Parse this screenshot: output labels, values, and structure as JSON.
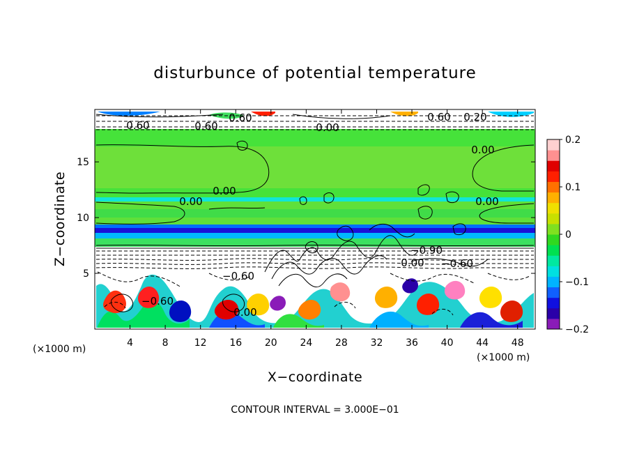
{
  "chart_data": {
    "type": "heatmap",
    "title": "disturbunce of potential temperature",
    "xlabel": "X−coordinate",
    "ylabel": "Z−coordinate",
    "x_unit": "(×1000 m)",
    "x_ticks": [
      4,
      8,
      12,
      16,
      20,
      24,
      28,
      32,
      36,
      40,
      44,
      48
    ],
    "y_ticks": [
      5,
      10,
      15
    ],
    "xlim": [
      0,
      50
    ],
    "ylim": [
      0,
      19.7
    ],
    "colorbar": {
      "ticks": [
        "0.2",
        "0.1",
        "0",
        "−0.1",
        "−0.2"
      ],
      "values": [
        0.2,
        0.1,
        0,
        -0.1,
        -0.2
      ],
      "range": [
        -0.2,
        0.2
      ],
      "colors": [
        "#8a1cb8",
        "#2a00a8",
        "#1010e0",
        "#1060ff",
        "#00b4ff",
        "#00e0e0",
        "#00e8a0",
        "#00e050",
        "#30d820",
        "#80e020",
        "#c8e000",
        "#f0e000",
        "#ffb000",
        "#ff7000",
        "#ff2000",
        "#e00000",
        "#ff9090",
        "#ffd0d0"
      ]
    },
    "contour_labels": [
      "0.60",
      "0.60",
      "0.60",
      "0.00",
      "0.00",
      "0.00",
      "0.00",
      "0.00",
      "0.60",
      "0.20",
      "0.00",
      "−0.60",
      "0.00",
      "−0.90",
      "−0.60",
      "−0.60"
    ],
    "contour_interval_text": "CONTOUR INTERVAL = 3.000E−01"
  }
}
